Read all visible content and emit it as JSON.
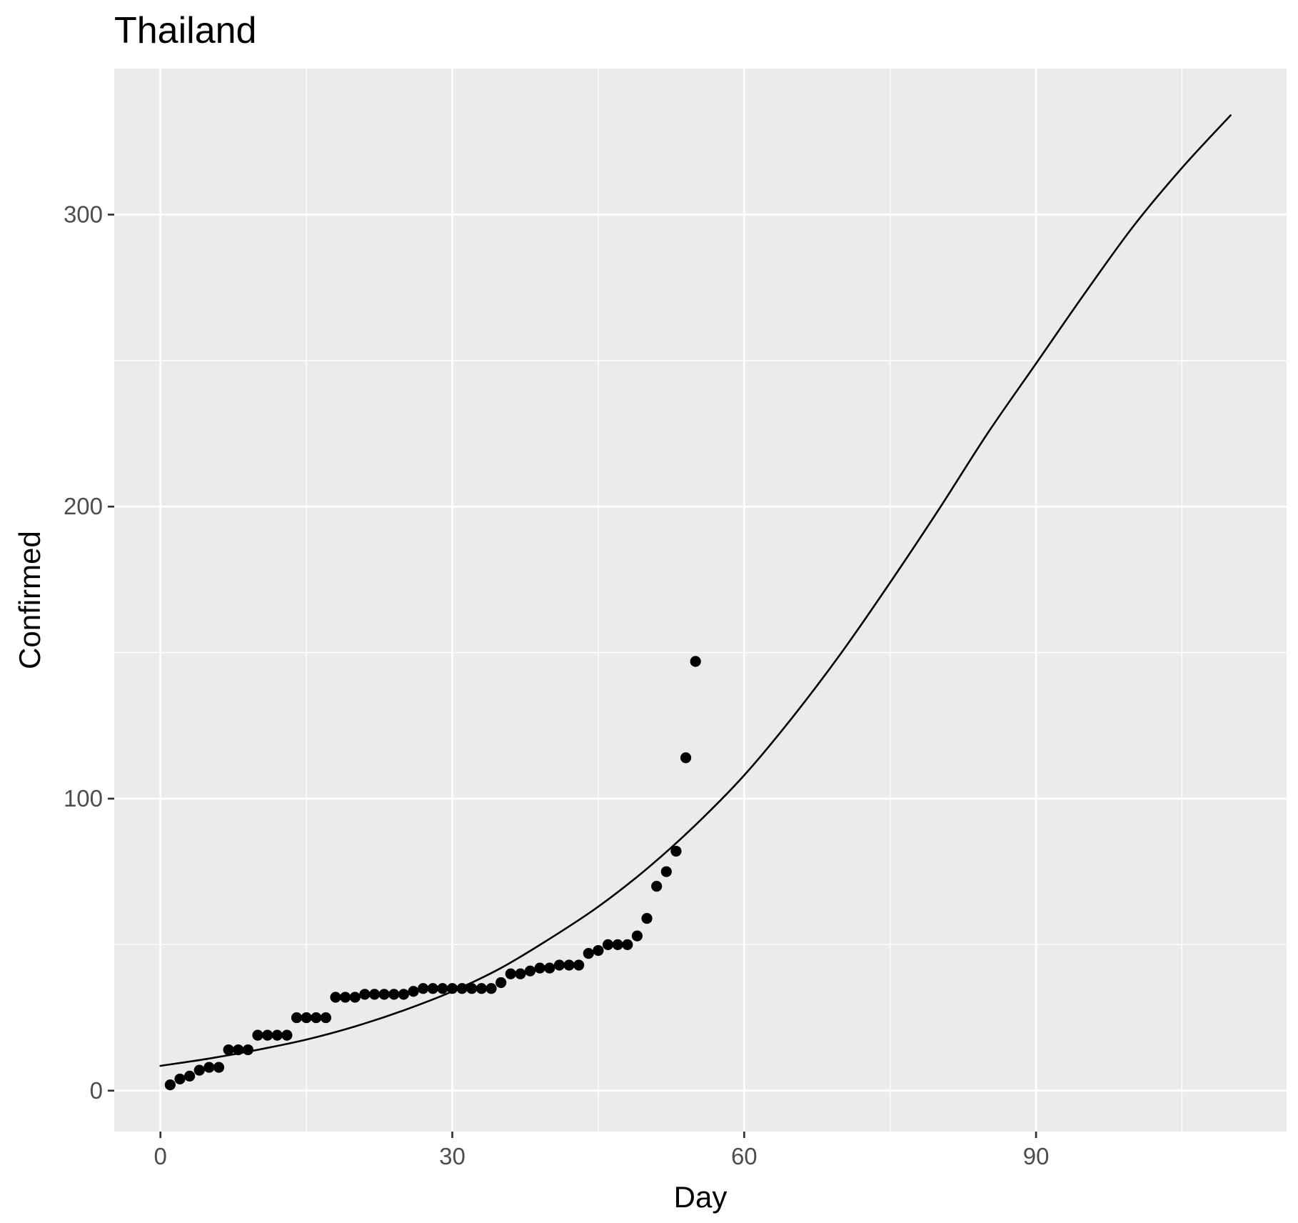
{
  "chart_data": {
    "type": "scatter",
    "title": "Thailand",
    "xlabel": "Day",
    "ylabel": "Confirmed",
    "xlim": [
      -4.75,
      115.75
    ],
    "ylim": [
      -14,
      350
    ],
    "x_ticks": [
      0,
      30,
      60,
      90
    ],
    "x_tick_labels": [
      "0",
      "30",
      "60",
      "90"
    ],
    "x_minor_ticks": [
      15,
      45,
      75,
      105
    ],
    "y_ticks": [
      0,
      100,
      200,
      300
    ],
    "y_tick_labels": [
      "0",
      "100",
      "200",
      "300"
    ],
    "y_minor_ticks": [
      50,
      150,
      250
    ],
    "grid": true,
    "panel_background": "#ebebeb",
    "grid_color": "#ffffff",
    "series": [
      {
        "type": "scatter",
        "color": "#000000",
        "x": [
          1,
          2,
          3,
          4,
          5,
          6,
          7,
          8,
          9,
          10,
          11,
          12,
          13,
          14,
          15,
          16,
          17,
          18,
          19,
          20,
          21,
          22,
          23,
          24,
          25,
          26,
          27,
          28,
          29,
          30,
          31,
          32,
          33,
          34,
          35,
          36,
          37,
          38,
          39,
          40,
          41,
          42,
          43,
          44,
          45,
          46,
          47,
          48,
          49,
          50,
          51,
          52,
          53,
          54,
          55
        ],
        "y": [
          2,
          4,
          5,
          7,
          8,
          8,
          14,
          14,
          14,
          19,
          19,
          19,
          19,
          25,
          25,
          25,
          25,
          32,
          32,
          32,
          33,
          33,
          33,
          33,
          33,
          34,
          35,
          35,
          35,
          35,
          35,
          35,
          35,
          35,
          37,
          40,
          40,
          41,
          42,
          42,
          43,
          43,
          43,
          47,
          48,
          50,
          50,
          50,
          53,
          59,
          70,
          75,
          82,
          114,
          147
        ]
      },
      {
        "type": "line",
        "color": "#000000",
        "x": [
          0,
          5,
          10,
          15,
          20,
          25,
          30,
          35,
          40,
          45,
          50,
          55,
          60,
          65,
          70,
          75,
          80,
          85,
          90,
          95,
          100,
          105,
          110
        ],
        "y": [
          8.5,
          11,
          14,
          17.5,
          22,
          27.5,
          34,
          42,
          52,
          63,
          76,
          91,
          108,
          128,
          150,
          174,
          199,
          225,
          249,
          273,
          296,
          316,
          334
        ]
      }
    ]
  }
}
